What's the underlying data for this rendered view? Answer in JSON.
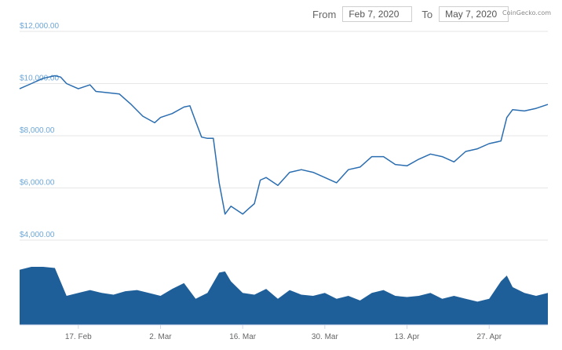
{
  "date_range": {
    "from_label": "From",
    "from_value": "Feb 7, 2020",
    "to_label": "To",
    "to_value": "May 7, 2020"
  },
  "credit": "CoinGecko.com",
  "colors": {
    "line": "#2a6db0",
    "volume": "#1f5f99",
    "grid": "#e6e6e6",
    "ytick": "#6da7d8"
  },
  "chart_data": {
    "type": "line",
    "title": "",
    "xlabel": "",
    "ylabel": "",
    "ylim": [
      3400,
      12600
    ],
    "yticks": [
      4000,
      6000,
      8000,
      10000,
      12000
    ],
    "ytick_labels": [
      "$4,000.00",
      "$6,000.00",
      "$8,000.00",
      "$10,000.00",
      "$12,000.00"
    ],
    "xlim": [
      "2020-02-07",
      "2020-05-07"
    ],
    "xtick_labels": [
      {
        "date": "2020-02-17",
        "label": "17. Feb"
      },
      {
        "date": "2020-03-02",
        "label": "2. Mar"
      },
      {
        "date": "2020-03-16",
        "label": "16. Mar"
      },
      {
        "date": "2020-03-30",
        "label": "30. Mar"
      },
      {
        "date": "2020-04-13",
        "label": "13. Apr"
      },
      {
        "date": "2020-04-27",
        "label": "27. Apr"
      }
    ],
    "grid": true,
    "legend": "none",
    "series": [
      {
        "x": [
          "2020-02-07",
          "2020-02-09",
          "2020-02-11",
          "2020-02-13",
          "2020-02-14",
          "2020-02-15",
          "2020-02-16",
          "2020-02-17",
          "2020-02-19",
          "2020-02-20",
          "2020-02-22",
          "2020-02-24",
          "2020-02-26",
          "2020-02-28",
          "2020-03-01",
          "2020-03-02",
          "2020-03-04",
          "2020-03-06",
          "2020-03-07",
          "2020-03-08",
          "2020-03-09",
          "2020-03-10",
          "2020-03-11",
          "2020-03-12",
          "2020-03-13",
          "2020-03-14",
          "2020-03-15",
          "2020-03-16",
          "2020-03-17",
          "2020-03-18",
          "2020-03-19",
          "2020-03-20",
          "2020-03-22",
          "2020-03-24",
          "2020-03-26",
          "2020-03-28",
          "2020-03-30",
          "2020-04-01",
          "2020-04-03",
          "2020-04-05",
          "2020-04-07",
          "2020-04-09",
          "2020-04-11",
          "2020-04-13",
          "2020-04-15",
          "2020-04-17",
          "2020-04-19",
          "2020-04-21",
          "2020-04-23",
          "2020-04-25",
          "2020-04-27",
          "2020-04-29",
          "2020-04-30",
          "2020-05-01",
          "2020-05-03",
          "2020-05-05",
          "2020-05-07"
        ],
        "y": [
          9800,
          10000,
          10200,
          10300,
          10250,
          10000,
          9900,
          9800,
          9950,
          9700,
          9650,
          9600,
          9200,
          8750,
          8500,
          8700,
          8850,
          9100,
          9150,
          8550,
          7950,
          7900,
          7900,
          6200,
          5000,
          5300,
          5150,
          5000,
          5200,
          5400,
          6300,
          6400,
          6100,
          6600,
          6700,
          6600,
          6400,
          6200,
          6700,
          6800,
          7200,
          7200,
          6900,
          6850,
          7100,
          7300,
          7200,
          7000,
          7400,
          7500,
          7700,
          7800,
          8700,
          9000,
          8950,
          9050,
          9200
        ]
      }
    ],
    "volume": {
      "x": [
        "2020-02-07",
        "2020-02-09",
        "2020-02-11",
        "2020-02-13",
        "2020-02-15",
        "2020-02-17",
        "2020-02-19",
        "2020-02-21",
        "2020-02-23",
        "2020-02-25",
        "2020-02-27",
        "2020-02-29",
        "2020-03-02",
        "2020-03-04",
        "2020-03-06",
        "2020-03-08",
        "2020-03-10",
        "2020-03-12",
        "2020-03-13",
        "2020-03-14",
        "2020-03-16",
        "2020-03-18",
        "2020-03-20",
        "2020-03-22",
        "2020-03-24",
        "2020-03-26",
        "2020-03-28",
        "2020-03-30",
        "2020-04-01",
        "2020-04-03",
        "2020-04-05",
        "2020-04-07",
        "2020-04-09",
        "2020-04-11",
        "2020-04-13",
        "2020-04-15",
        "2020-04-17",
        "2020-04-19",
        "2020-04-21",
        "2020-04-23",
        "2020-04-25",
        "2020-04-27",
        "2020-04-29",
        "2020-04-30",
        "2020-05-01",
        "2020-05-03",
        "2020-05-05",
        "2020-05-07"
      ],
      "y": [
        0.95,
        1.0,
        1.0,
        0.98,
        0.5,
        0.55,
        0.6,
        0.55,
        0.52,
        0.58,
        0.6,
        0.55,
        0.5,
        0.62,
        0.72,
        0.45,
        0.55,
        0.9,
        0.92,
        0.75,
        0.55,
        0.52,
        0.62,
        0.45,
        0.6,
        0.52,
        0.5,
        0.55,
        0.45,
        0.5,
        0.42,
        0.55,
        0.6,
        0.5,
        0.48,
        0.5,
        0.55,
        0.45,
        0.5,
        0.45,
        0.4,
        0.45,
        0.75,
        0.85,
        0.65,
        0.55,
        0.5,
        0.55
      ]
    }
  }
}
